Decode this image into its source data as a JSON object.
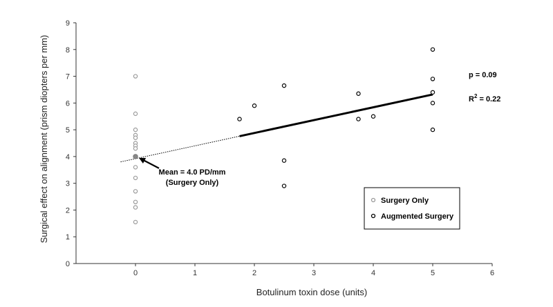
{
  "chart_data": {
    "type": "scatter",
    "xlabel": "Botulinum toxin dose (units)",
    "ylabel": "Surgical effect on alignment (prism diopters per mm)",
    "xlim": [
      -1,
      6
    ],
    "ylim": [
      0,
      9
    ],
    "x_ticks": [
      "0",
      "1",
      "2",
      "3",
      "4",
      "5",
      "6"
    ],
    "y_ticks": [
      "0",
      "1",
      "2",
      "3",
      "4",
      "5",
      "6",
      "7",
      "8",
      "9"
    ],
    "grid": false,
    "legend_position": "bottom-right",
    "series": [
      {
        "name": "Surgery Only",
        "color": "#9a9a9a",
        "points": [
          {
            "x": 0,
            "y": 7.0
          },
          {
            "x": 0,
            "y": 5.6
          },
          {
            "x": 0,
            "y": 5.0
          },
          {
            "x": 0,
            "y": 4.8
          },
          {
            "x": 0,
            "y": 4.7
          },
          {
            "x": 0,
            "y": 4.5
          },
          {
            "x": 0,
            "y": 4.4
          },
          {
            "x": 0,
            "y": 4.3
          },
          {
            "x": 0,
            "y": 4.0
          },
          {
            "x": 0,
            "y": 3.6
          },
          {
            "x": 0,
            "y": 3.2
          },
          {
            "x": 0,
            "y": 2.7
          },
          {
            "x": 0,
            "y": 2.3
          },
          {
            "x": 0,
            "y": 2.1
          },
          {
            "x": 0,
            "y": 1.55
          }
        ]
      },
      {
        "name": "Augmented Surgery",
        "color": "#000000",
        "points": [
          {
            "x": 1.75,
            "y": 5.4
          },
          {
            "x": 2.0,
            "y": 5.9
          },
          {
            "x": 2.5,
            "y": 6.65
          },
          {
            "x": 2.5,
            "y": 3.85
          },
          {
            "x": 2.5,
            "y": 2.9
          },
          {
            "x": 3.75,
            "y": 6.35
          },
          {
            "x": 3.75,
            "y": 5.4
          },
          {
            "x": 4.0,
            "y": 5.5
          },
          {
            "x": 5.0,
            "y": 8.0
          },
          {
            "x": 5.0,
            "y": 6.9
          },
          {
            "x": 5.0,
            "y": 6.4
          },
          {
            "x": 5.0,
            "y": 6.0
          },
          {
            "x": 5.0,
            "y": 5.0
          }
        ]
      }
    ],
    "mean_point": {
      "x": 0,
      "y": 4.0
    },
    "trendline": {
      "dotted": {
        "x1": -0.25,
        "y1": 3.8,
        "x2": 1.75,
        "y2": 4.76
      },
      "solid": {
        "x1": 1.75,
        "y1": 4.76,
        "x2": 5.0,
        "y2": 6.32
      }
    },
    "stats": {
      "p": "p = 0.09",
      "r2_prefix": "R",
      "r2_sup": "2",
      "r2_value": " = 0.22"
    },
    "annotation": {
      "line1": "Mean = 4.0 PD/mm",
      "line2": "(Surgery Only)"
    }
  }
}
